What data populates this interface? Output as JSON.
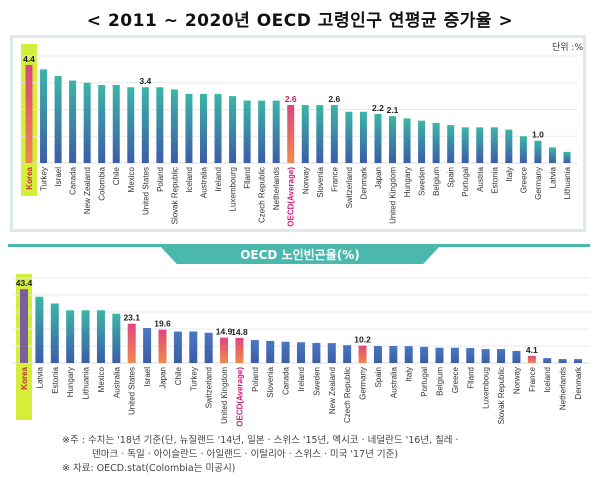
{
  "title": "< 2011 ~ 2020년 OECD 고령인구 연평균 증가율 >",
  "chart_data": [
    {
      "type": "bar",
      "title": "< 2011 ~ 2020년 OECD 고령인구 연평균 증가율 >",
      "unit_label": "단위 :%",
      "categories": [
        "Korea",
        "Turkey",
        "Israel",
        "Canada",
        "New Zealand",
        "Colombia",
        "Chile",
        "Mexico",
        "United States",
        "Poland",
        "Slovak Republic",
        "Iceland",
        "Australia",
        "Ireland",
        "Luxembourg",
        "Flland",
        "Czech Republic",
        "Netherlands",
        "OECD(Average)",
        "Norway",
        "Slovenia",
        "France",
        "Switzerland",
        "Denmark",
        "Japan",
        "United Kingdom",
        "Hungary",
        "Sweden",
        "Belgium",
        "Spain",
        "Portugal",
        "Austria",
        "Estonia",
        "Italy",
        "Greece",
        "Germany",
        "Latvia",
        "Lithuania"
      ],
      "values": [
        4.4,
        4.2,
        3.9,
        3.7,
        3.6,
        3.5,
        3.5,
        3.4,
        3.4,
        3.4,
        3.3,
        3.1,
        3.1,
        3.1,
        3.0,
        2.8,
        2.8,
        2.8,
        2.6,
        2.6,
        2.6,
        2.6,
        2.3,
        2.3,
        2.2,
        2.1,
        2.0,
        1.9,
        1.8,
        1.7,
        1.6,
        1.6,
        1.6,
        1.5,
        1.2,
        1.0,
        0.7,
        0.5
      ],
      "data_labels": {
        "Korea": "4.4",
        "United States": "3.4",
        "OECD(Average)": "2.6",
        "France": "2.6",
        "Japan": "2.2",
        "United Kingdom": "2.1",
        "Germany": "1.0"
      },
      "highlighted": [
        "Korea",
        "OECD(Average)"
      ],
      "ylim": [
        0,
        4.8
      ],
      "grid": true,
      "colors": {
        "bar_top": "#3cb5a6",
        "bar_bottom": "#3d5ca8",
        "highlight_top": "#d9467e",
        "highlight_bottom": "#f08a4b",
        "korea_box": "#d4ee3a",
        "oecd_label": "#d01f7a"
      }
    },
    {
      "type": "bar",
      "title": "OECD 노인빈곤율(%)",
      "categories": [
        "Korea",
        "Latvia",
        "Estonia",
        "Hungary",
        "Lithuania",
        "Mexico",
        "Australia",
        "United States",
        "Israel",
        "Japan",
        "Chile",
        "Turkey",
        "Switzerland",
        "United Kingdom",
        "OECD(Average)",
        "Poland",
        "Slovenia",
        "Canada",
        "Ireland",
        "Sweden",
        "New Zealand",
        "Czech Republic",
        "Germany",
        "Spain",
        "Australia",
        "Italy",
        "Portugal",
        "Belgium",
        "Greece",
        "Flland",
        "Luxemboug",
        "Slovak Republic",
        "Norway",
        "France",
        "Iceland",
        "Netherlands",
        "Denmark"
      ],
      "values": [
        43.4,
        39.0,
        35.0,
        31.0,
        31.0,
        31.0,
        29.0,
        23.1,
        20.6,
        19.6,
        18.5,
        18.5,
        17.8,
        14.9,
        14.8,
        13.5,
        13.0,
        12.5,
        12.2,
        11.8,
        11.7,
        10.5,
        10.2,
        10.0,
        10.0,
        9.9,
        9.5,
        9.0,
        9.0,
        8.8,
        8.2,
        8.2,
        7.1,
        4.1,
        2.9,
        2.3,
        2.3
      ],
      "data_labels": {
        "Korea": "43.4",
        "United States": "23.1",
        "Japan": "19.6",
        "United Kingdom": "14.9",
        "OECD(Average)": "14.8",
        "Germany": "10.2",
        "France": "4.1"
      },
      "highlighted": [
        "United States",
        "Japan",
        "United Kingdom",
        "OECD(Average)",
        "Germany",
        "France"
      ],
      "ylim": [
        0,
        50
      ],
      "grid": true,
      "colors": {
        "korea_bar": "#7b5e9a",
        "teal_top": "#3cb5a6",
        "bar_top": "#4a78c0",
        "bar_bottom": "#3d5ca8",
        "highlight_top": "#e0457e",
        "highlight_bottom": "#f08a4b",
        "korea_box": "#d4ee3a",
        "header_band": "#4bb8ae"
      }
    }
  ],
  "notes": {
    "line1": "※주 : 수치는 '18년 기준(단, 뉴질랜드 '14년, 일본 · 스위스 '15년, 멕시코 · 네덜란드 '16년, 칠레 ·",
    "line2": "덴마크 · 독일 · 아이슬란드 · 아일랜드 · 이탈리아 · 스위스 · 미국 '17년 기준)",
    "line3": "※ 자료: OECD.stat(Colombia는 미공시)"
  }
}
